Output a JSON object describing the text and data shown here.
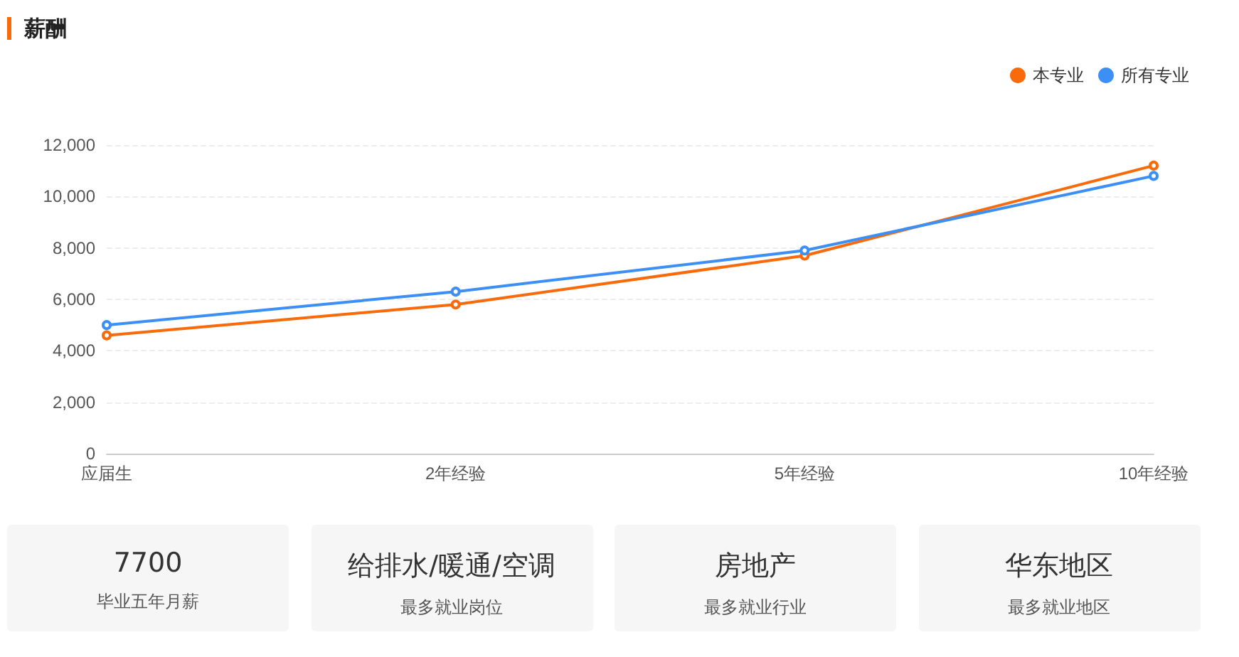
{
  "chart_data": [
    {
      "type": "line",
      "title": "薪酬",
      "categories": [
        "应届生",
        "2年经验",
        "5年经验",
        "10年经验"
      ],
      "series": [
        {
          "name": "本专业",
          "color": "#f96a0b",
          "values": [
            4600,
            5800,
            7700,
            11200
          ]
        },
        {
          "name": "所有专业",
          "color": "#3b8ff5",
          "values": [
            5000,
            6300,
            7900,
            10800
          ]
        }
      ],
      "ylim": [
        0,
        12000
      ],
      "yticks": [
        0,
        {
          "value": 2000,
          "label": "2,000"
        },
        {
          "value": 4000,
          "label": "4,000"
        },
        {
          "value": 6000,
          "label": "6,000"
        },
        {
          "value": 8000,
          "label": "8,000"
        },
        {
          "value": 10000,
          "label": "10,000"
        },
        {
          "value": 12000,
          "label": "12,000"
        }
      ],
      "grid": "y",
      "legend": "top right",
      "marker": "circle",
      "line_style": "solid"
    },
    {
      "type": "other",
      "annotations": [
        "7700",
        "毕业五年月薪",
        "给排水/暖通/空调",
        "最多就业岗位",
        "房地产",
        "最多就业行业",
        "华东地区",
        "最多就业地区"
      ]
    }
  ]
}
